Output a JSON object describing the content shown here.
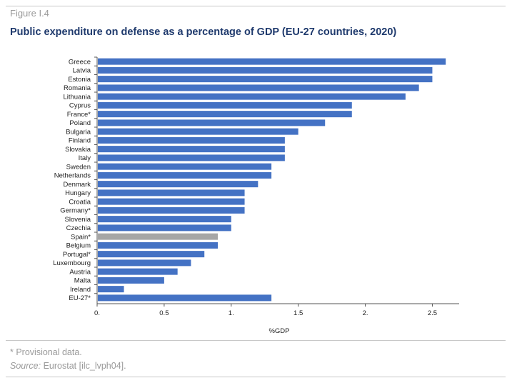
{
  "figure_label": "Figure I.4",
  "footnote": "* Provisional data.",
  "source": {
    "label": "Source:",
    "text": "Eurostat [ilc_lvph04]."
  },
  "colors": {
    "bar": "#4472c4",
    "highlight": "#a6a6a6",
    "title": "#1f3a6d",
    "muted": "#9a9a9a"
  },
  "chart_data": {
    "type": "bar",
    "orientation": "horizontal",
    "title": "Public expenditure on defense as a percentage of GDP (EU-27 countries, 2020)",
    "xlabel": "%GDP",
    "ylabel": "",
    "xlim": [
      0,
      2.7
    ],
    "xticks": [
      "0.",
      "0.5",
      "1.",
      "1.5",
      "2.",
      "2.5"
    ],
    "xtick_values": [
      0,
      0.5,
      1,
      1.5,
      2,
      2.5
    ],
    "categories": [
      "Greece",
      "Latvia",
      "Estonia",
      "Romania",
      "Lithuania",
      "Cyprus",
      "France*",
      "Poland",
      "Bulgaria",
      "Finland",
      "Slovakia",
      "Italy",
      "Sweden",
      "Netherlands",
      "Denmark",
      "Hungary",
      "Croatia",
      "Germany*",
      "Slovenia",
      "Czechia",
      "Spain*",
      "Belgium",
      "Portugal*",
      "Luxembourg",
      "Austria",
      "Malta",
      "Ireland",
      "EU-27*"
    ],
    "values": [
      2.6,
      2.5,
      2.5,
      2.4,
      2.3,
      1.9,
      1.9,
      1.7,
      1.5,
      1.4,
      1.4,
      1.4,
      1.3,
      1.3,
      1.2,
      1.1,
      1.1,
      1.1,
      1.0,
      1.0,
      0.9,
      0.9,
      0.8,
      0.7,
      0.6,
      0.5,
      0.2,
      1.3
    ],
    "highlight": "Spain*",
    "grid": false,
    "legend": "none"
  }
}
